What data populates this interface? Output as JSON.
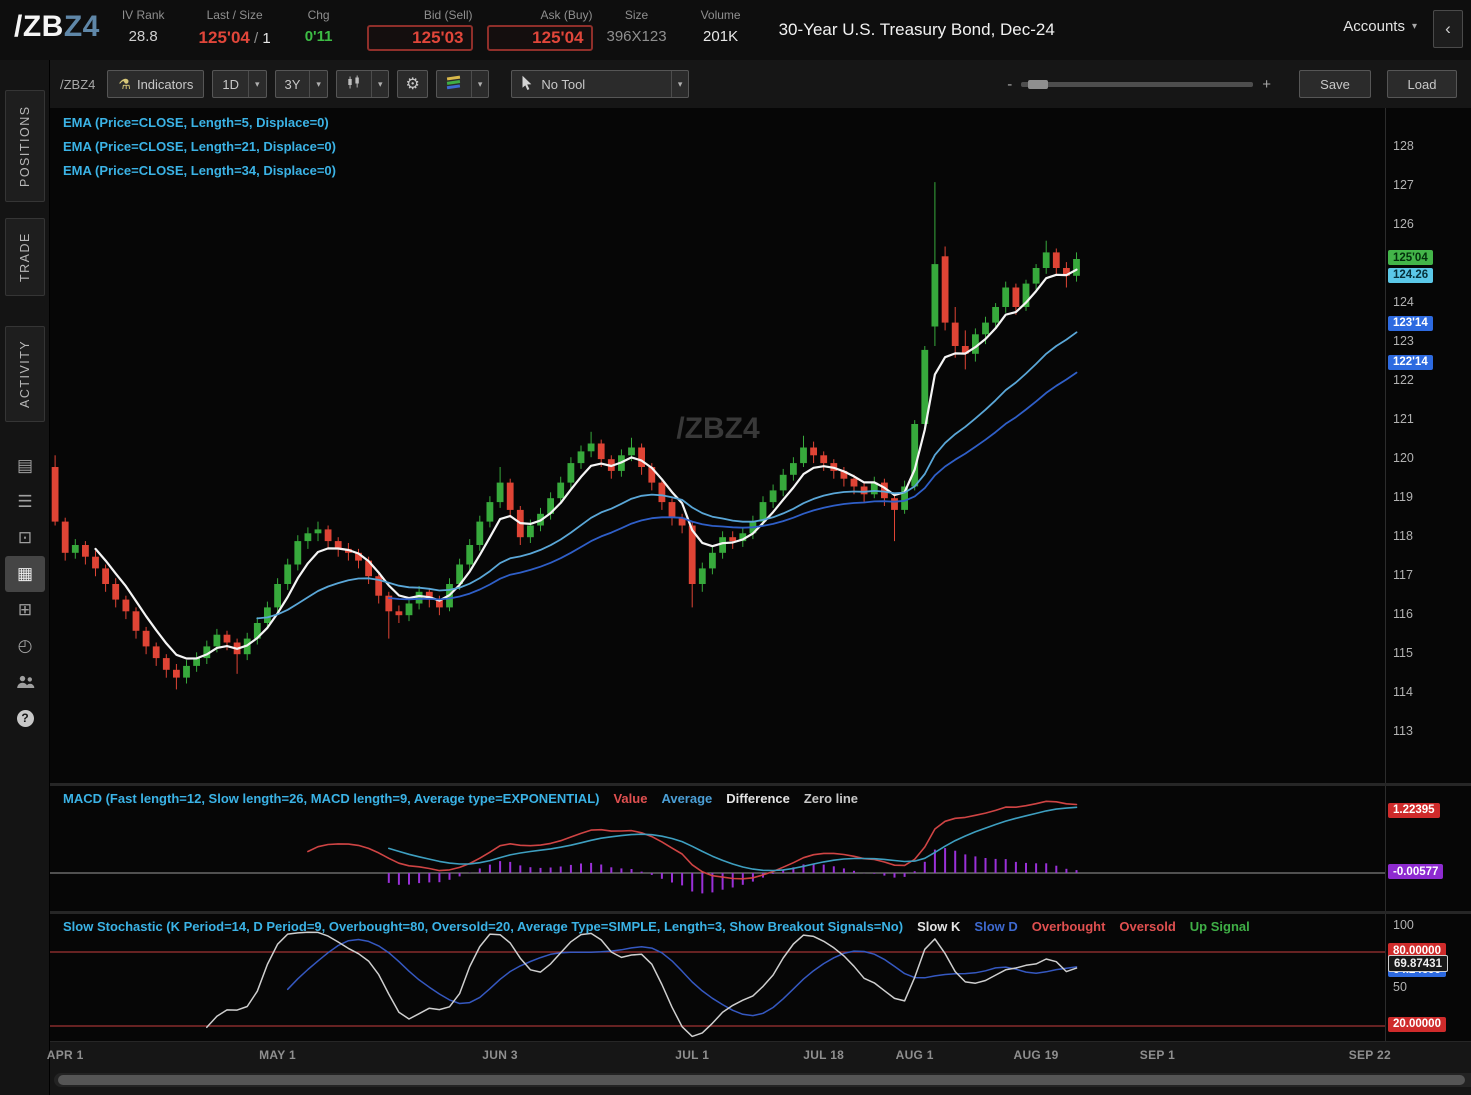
{
  "header": {
    "symbol_root": "/ZB",
    "symbol_suffix": "Z4",
    "iv_rank_label": "IV Rank",
    "iv_rank": "28.8",
    "last_size_label": "Last / Size",
    "last": "125'04",
    "size_sep": "/",
    "size_qty": "1",
    "chg_label": "Chg",
    "chg": "0'11",
    "bid_label": "Bid (Sell)",
    "bid": "125'03",
    "ask_label": "Ask (Buy)",
    "ask": "125'04",
    "size_label": "Size",
    "size": "396X123",
    "volume_label": "Volume",
    "volume": "201K",
    "title": "30-Year U.S. Treasury Bond, Dec-24",
    "accounts_label": "Accounts"
  },
  "glyphs": {
    "flask": "⚗",
    "gear": "⚙",
    "caret": "▾",
    "collapse": "‹",
    "zoom_out": "-",
    "zoom_in": "+"
  },
  "sidebar": {
    "tabs": [
      {
        "label": "POSITIONS"
      },
      {
        "label": "TRADE"
      },
      {
        "label": "ACTIVITY"
      }
    ],
    "icons": [
      {
        "name": "calendar-icon",
        "glyph": "▤"
      },
      {
        "name": "list-icon",
        "glyph": "☰"
      },
      {
        "name": "tv-icon",
        "glyph": "⊡"
      },
      {
        "name": "chart-icon",
        "glyph": "▦",
        "active": true
      },
      {
        "name": "grid-icon",
        "glyph": "⊞"
      },
      {
        "name": "clock-icon",
        "glyph": "◴"
      },
      {
        "name": "people-icon",
        "glyph": ""
      },
      {
        "name": "help-icon",
        "glyph": "?"
      }
    ]
  },
  "toolbar": {
    "symbol": "/ZBZ4",
    "indicators_label": "Indicators",
    "timeframe": "1D",
    "range": "3Y",
    "no_tool_label": "No Tool",
    "save_label": "Save",
    "load_label": "Load"
  },
  "studies": {
    "ema_labels": [
      "EMA (Price=CLOSE, Length=5, Displace=0)",
      "EMA (Price=CLOSE, Length=21, Displace=0)",
      "EMA (Price=CLOSE, Length=34, Displace=0)"
    ],
    "macd_label": "MACD (Fast length=12, Slow length=26, MACD length=9, Average type=EXPONENTIAL)",
    "macd_legend": [
      "Value",
      "Average",
      "Difference",
      "Zero line"
    ],
    "stoch_label": "Slow Stochastic (K Period=14, D Period=9, Overbought=80, Oversold=20, Average Type=SIMPLE, Length=3, Show Breakout Signals=No)",
    "stoch_legend": [
      "Slow K",
      "Slow D",
      "Overbought",
      "Oversold",
      "Up Signal"
    ]
  },
  "watermark": "/ZBZ4",
  "price_axis": {
    "ticks": [
      113,
      114,
      115,
      116,
      117,
      118,
      119,
      120,
      121,
      122,
      123,
      124,
      126,
      127,
      128
    ],
    "badges": [
      {
        "text": "124.26",
        "price": 124.67,
        "bg": "#5bc8e8",
        "fg": "#06303a"
      },
      {
        "text": "125'04",
        "price": 125.125,
        "bg": "#43b549",
        "fg": "#03300c"
      },
      {
        "text": "123'14",
        "price": 123.44,
        "bg": "#2d6ae0",
        "fg": "#ffffff"
      },
      {
        "text": "122'14",
        "price": 122.44,
        "bg": "#2d6ae0",
        "fg": "#ffffff"
      }
    ]
  },
  "macd_axis": {
    "items": [
      {
        "text": "1.22395",
        "v": 1.224,
        "bg": "#cf2b2b",
        "fg": "#ffffff"
      },
      {
        "text": "-0.00577",
        "v": -0.006,
        "bg": "#8e2bd0",
        "fg": "#ffffff"
      }
    ]
  },
  "stoch_axis": {
    "items": [
      {
        "text": "100",
        "v": 100
      },
      {
        "text": "80.00000",
        "v": 80,
        "bg": "#cf2b2b",
        "fg": "#ffffff"
      },
      {
        "text": "64.24699",
        "v": 64.2,
        "bg": "#2d6ae0",
        "fg": "#ffffff"
      },
      {
        "text": "69.87431",
        "v": 69.87,
        "bg": "#181818",
        "fg": "#f0f0f0",
        "border": "#cfcfcf"
      },
      {
        "text": "50",
        "v": 50
      },
      {
        "text": "20.00000",
        "v": 20,
        "bg": "#cf2b2b",
        "fg": "#ffffff"
      }
    ]
  },
  "chart_data": {
    "type": "candlestick",
    "symbol": "/ZBZ4",
    "timeframe": "1D",
    "price_range_view": [
      111.7,
      129.0
    ],
    "up_color": "#37a93c",
    "down_color": "#df4435",
    "total_slots": 132,
    "candles": [
      [
        119.8,
        120.1,
        118.3,
        118.4
      ],
      [
        118.4,
        118.5,
        117.4,
        117.6
      ],
      [
        117.6,
        117.95,
        117.45,
        117.8
      ],
      [
        117.8,
        117.9,
        117.3,
        117.5
      ],
      [
        117.5,
        117.65,
        117.0,
        117.2
      ],
      [
        117.2,
        117.3,
        116.6,
        116.8
      ],
      [
        116.8,
        116.95,
        116.2,
        116.4
      ],
      [
        116.4,
        116.5,
        115.9,
        116.1
      ],
      [
        116.1,
        116.2,
        115.4,
        115.6
      ],
      [
        115.6,
        115.7,
        115.0,
        115.2
      ],
      [
        115.2,
        115.3,
        114.7,
        114.9
      ],
      [
        114.9,
        115.0,
        114.4,
        114.6
      ],
      [
        114.6,
        114.75,
        114.1,
        114.4
      ],
      [
        114.4,
        114.85,
        114.25,
        114.7
      ],
      [
        114.7,
        115.05,
        114.55,
        114.9
      ],
      [
        114.9,
        115.35,
        114.75,
        115.2
      ],
      [
        115.2,
        115.65,
        115.05,
        115.5
      ],
      [
        115.5,
        115.6,
        115.1,
        115.3
      ],
      [
        115.3,
        115.4,
        114.5,
        115.0
      ],
      [
        115.0,
        115.55,
        114.85,
        115.4
      ],
      [
        115.4,
        115.95,
        115.25,
        115.8
      ],
      [
        115.8,
        116.35,
        115.65,
        116.2
      ],
      [
        116.2,
        116.95,
        116.05,
        116.8
      ],
      [
        116.8,
        117.45,
        116.65,
        117.3
      ],
      [
        117.3,
        118.05,
        117.15,
        117.9
      ],
      [
        117.9,
        118.25,
        117.7,
        118.1
      ],
      [
        118.1,
        118.4,
        117.9,
        118.2
      ],
      [
        118.2,
        118.3,
        117.7,
        117.9
      ],
      [
        117.9,
        118.0,
        117.5,
        117.7
      ],
      [
        117.7,
        117.85,
        117.4,
        117.6
      ],
      [
        117.6,
        117.7,
        117.2,
        117.4
      ],
      [
        117.4,
        117.5,
        116.8,
        117.0
      ],
      [
        117.0,
        117.1,
        116.3,
        116.5
      ],
      [
        116.5,
        116.6,
        115.4,
        116.1
      ],
      [
        116.1,
        116.25,
        115.8,
        116.0
      ],
      [
        116.0,
        116.45,
        115.85,
        116.3
      ],
      [
        116.3,
        116.75,
        116.15,
        116.6
      ],
      [
        116.6,
        116.7,
        116.2,
        116.4
      ],
      [
        116.4,
        116.5,
        116.0,
        116.2
      ],
      [
        116.2,
        116.95,
        116.1,
        116.8
      ],
      [
        116.8,
        117.45,
        116.65,
        117.3
      ],
      [
        117.3,
        117.95,
        117.15,
        117.8
      ],
      [
        117.8,
        118.55,
        117.65,
        118.4
      ],
      [
        118.4,
        119.05,
        118.25,
        118.9
      ],
      [
        118.9,
        119.8,
        118.75,
        119.4
      ],
      [
        119.4,
        119.5,
        118.5,
        118.7
      ],
      [
        118.7,
        118.8,
        117.8,
        118.0
      ],
      [
        118.0,
        118.45,
        117.85,
        118.3
      ],
      [
        118.3,
        118.75,
        118.15,
        118.6
      ],
      [
        118.6,
        119.15,
        118.45,
        119.0
      ],
      [
        119.0,
        119.55,
        118.85,
        119.4
      ],
      [
        119.4,
        120.05,
        119.25,
        119.9
      ],
      [
        119.9,
        120.35,
        119.75,
        120.2
      ],
      [
        120.2,
        120.7,
        120.05,
        120.4
      ],
      [
        120.4,
        120.5,
        119.8,
        120.0
      ],
      [
        120.0,
        120.1,
        119.5,
        119.7
      ],
      [
        119.7,
        120.25,
        119.55,
        120.1
      ],
      [
        120.1,
        120.55,
        119.95,
        120.3
      ],
      [
        120.3,
        120.4,
        119.6,
        119.8
      ],
      [
        119.8,
        119.9,
        119.2,
        119.4
      ],
      [
        119.4,
        119.5,
        118.7,
        118.9
      ],
      [
        118.9,
        119.0,
        118.3,
        118.5
      ],
      [
        118.5,
        118.6,
        118.1,
        118.3
      ],
      [
        118.3,
        118.4,
        116.2,
        116.8
      ],
      [
        116.8,
        117.35,
        116.6,
        117.2
      ],
      [
        117.2,
        117.75,
        117.05,
        117.6
      ],
      [
        117.6,
        118.15,
        117.45,
        118.0
      ],
      [
        118.0,
        118.15,
        117.7,
        117.9
      ],
      [
        117.9,
        118.25,
        117.75,
        118.1
      ],
      [
        118.1,
        118.55,
        117.95,
        118.4
      ],
      [
        118.4,
        119.05,
        118.3,
        118.9
      ],
      [
        118.9,
        119.35,
        118.75,
        119.2
      ],
      [
        119.2,
        119.75,
        119.05,
        119.6
      ],
      [
        119.6,
        120.05,
        119.45,
        119.9
      ],
      [
        119.9,
        120.6,
        119.8,
        120.3
      ],
      [
        120.3,
        120.45,
        119.9,
        120.1
      ],
      [
        120.1,
        120.2,
        119.7,
        119.9
      ],
      [
        119.9,
        120.0,
        119.5,
        119.7
      ],
      [
        119.7,
        119.8,
        119.3,
        119.5
      ],
      [
        119.5,
        119.6,
        119.1,
        119.3
      ],
      [
        119.3,
        119.4,
        118.9,
        119.1
      ],
      [
        119.1,
        119.55,
        119.0,
        119.4
      ],
      [
        119.4,
        119.5,
        118.8,
        119.0
      ],
      [
        119.0,
        119.1,
        117.9,
        118.7
      ],
      [
        118.7,
        119.45,
        118.6,
        119.3
      ],
      [
        119.3,
        121.0,
        119.2,
        120.9
      ],
      [
        120.9,
        122.9,
        120.8,
        122.8
      ],
      [
        123.4,
        127.1,
        122.9,
        125.0
      ],
      [
        125.2,
        125.45,
        123.3,
        123.5
      ],
      [
        123.5,
        123.9,
        122.6,
        122.9
      ],
      [
        122.9,
        123.3,
        122.3,
        122.7
      ],
      [
        122.7,
        123.35,
        122.5,
        123.2
      ],
      [
        123.2,
        123.65,
        122.95,
        123.5
      ],
      [
        123.5,
        124.0,
        123.35,
        123.9
      ],
      [
        123.9,
        124.55,
        123.75,
        124.4
      ],
      [
        124.4,
        124.5,
        123.7,
        123.9
      ],
      [
        123.9,
        124.6,
        123.8,
        124.5
      ],
      [
        124.5,
        125.0,
        124.35,
        124.9
      ],
      [
        124.9,
        125.6,
        124.75,
        125.3
      ],
      [
        125.3,
        125.4,
        124.7,
        124.9
      ],
      [
        124.9,
        125.05,
        124.4,
        124.7
      ],
      [
        124.7,
        125.3,
        124.55,
        125.13
      ]
    ],
    "overlays": [
      {
        "name": "EMA5",
        "length": 5,
        "color": "#f5f5f5",
        "width": 2.2
      },
      {
        "name": "EMA21",
        "length": 21,
        "color": "#5aa7d8",
        "width": 1.8
      },
      {
        "name": "EMA34",
        "length": 34,
        "color": "#2f5fc8",
        "width": 1.8
      }
    ],
    "macd": {
      "fast": 12,
      "slow": 26,
      "signal": 9,
      "value_color": "#cf4444",
      "avg_color": "#3e9fc0",
      "hist_color": "#9a30d8"
    },
    "stoch": {
      "k_period": 14,
      "d_period": 9,
      "smooth": 3,
      "overbought": 80,
      "oversold": 20,
      "k_color": "#cfcfcf",
      "d_color": "#3558c0",
      "band_color": "#a03434"
    },
    "time_ticks": [
      {
        "label": "APR 1",
        "slot": 1
      },
      {
        "label": "MAY 1",
        "slot": 22
      },
      {
        "label": "JUN 3",
        "slot": 44
      },
      {
        "label": "JUL 1",
        "slot": 63
      },
      {
        "label": "JUL 18",
        "slot": 76
      },
      {
        "label": "AUG 1",
        "slot": 85
      },
      {
        "label": "AUG 19",
        "slot": 97
      },
      {
        "label": "SEP 1",
        "slot": 109
      },
      {
        "label": "SEP 22",
        "slot": 130
      }
    ]
  }
}
